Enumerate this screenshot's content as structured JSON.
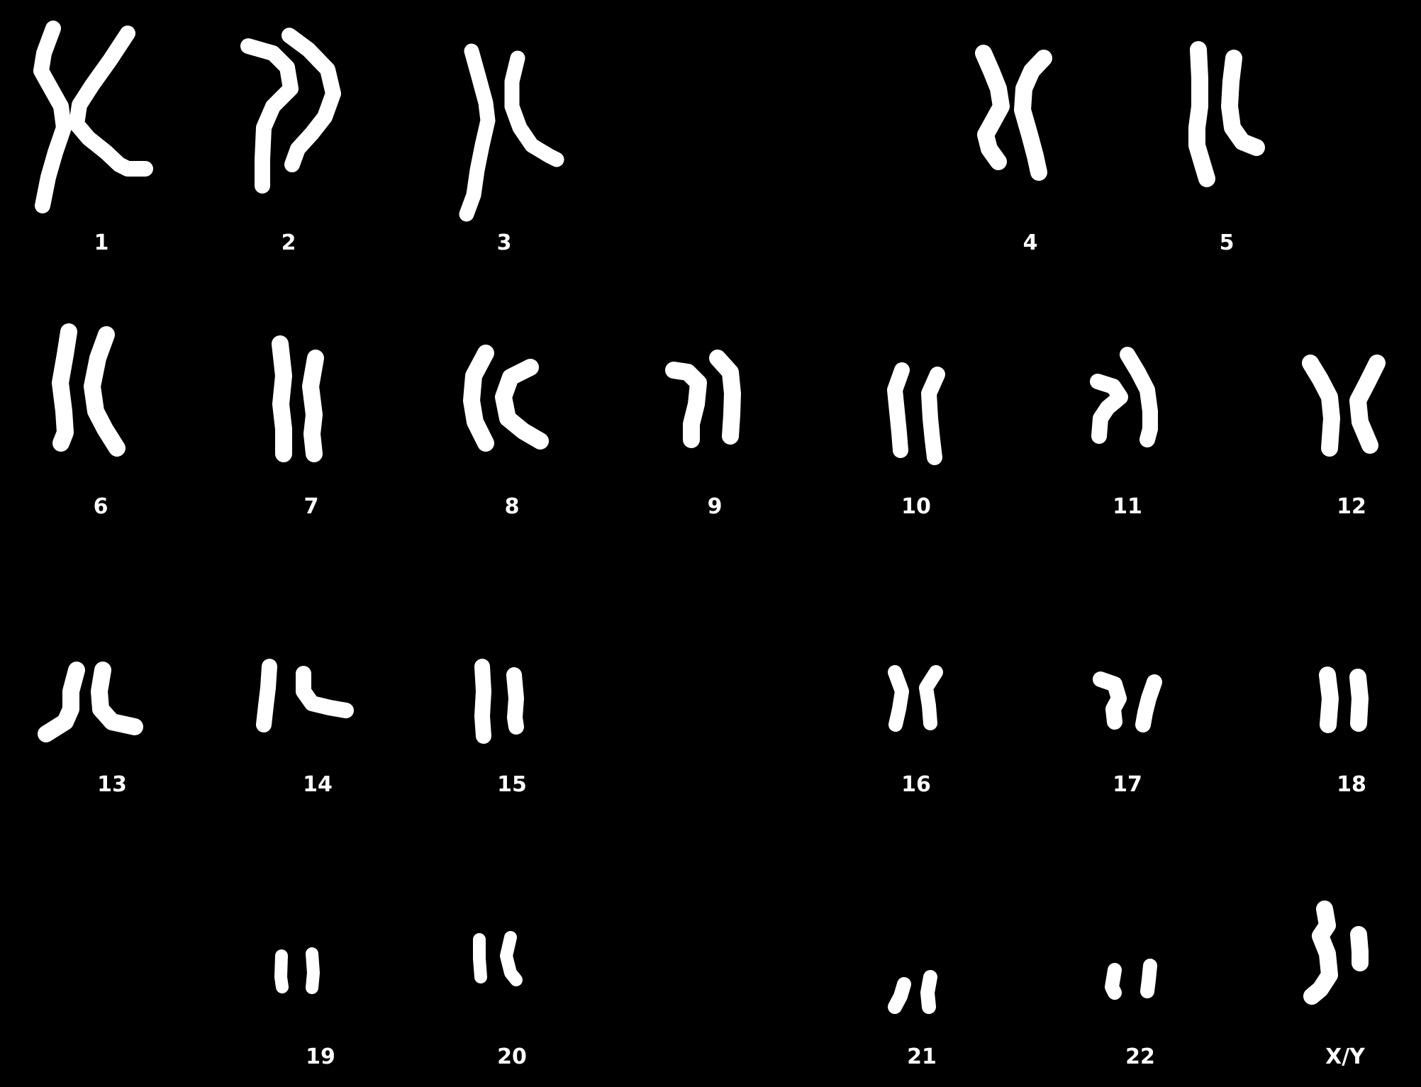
{
  "background_color": "#000000",
  "chromosome_color": "#ffffff",
  "labels": {
    "c1": "1",
    "c2": "2",
    "c3": "3",
    "c4": "4",
    "c5": "5",
    "c6": "6",
    "c7": "7",
    "c8": "8",
    "c9": "9",
    "c10": "10",
    "c11": "11",
    "c12": "12",
    "c13": "13",
    "c14": "14",
    "c15": "15",
    "c16": "16",
    "c17": "17",
    "c18": "18",
    "c19": "19",
    "c20": "20",
    "c21": "21",
    "c22": "22",
    "xy": "X/Y"
  }
}
